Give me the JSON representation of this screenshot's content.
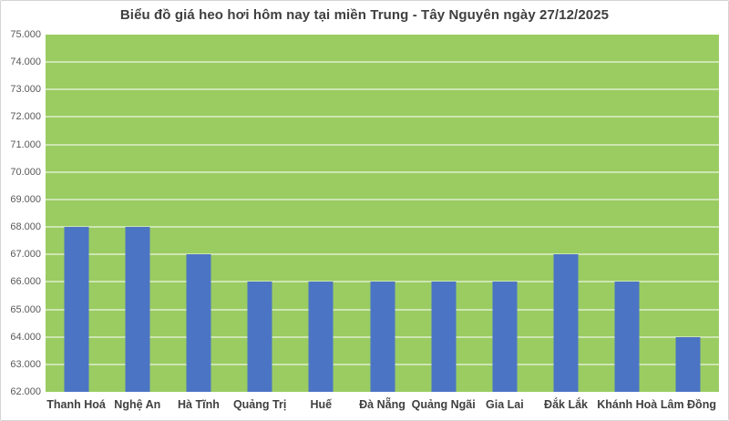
{
  "chart_data": {
    "type": "bar",
    "title": "Biểu đồ giá heo hơi hôm nay tại miền Trung - Tây Nguyên ngày 27/12/2025",
    "categories": [
      "Thanh Hoá",
      "Nghệ An",
      "Hà Tĩnh",
      "Quảng Trị",
      "Huế",
      "Đà Nẵng",
      "Quảng Ngãi",
      "Gia Lai",
      "Đắk Lắk",
      "Khánh Hoà",
      "Lâm Đồng"
    ],
    "values": [
      68000,
      68000,
      67000,
      66000,
      66000,
      66000,
      66000,
      66000,
      67000,
      66000,
      64000
    ],
    "xlabel": "",
    "ylabel": "",
    "ylim": [
      62000,
      75000
    ],
    "ytick_step": 1000,
    "ytick_labels": [
      "75.000",
      "74.000",
      "73.000",
      "72.000",
      "71.000",
      "70.000",
      "69.000",
      "68.000",
      "67.000",
      "66.000",
      "65.000",
      "64.000",
      "63.000",
      "62.000"
    ],
    "grid": "horizontal-major",
    "legend": "none",
    "colors": {
      "bar": "#4C74C4",
      "plot_background": "#9ACC62",
      "gridline": "rgba(255,255,255,0.5)",
      "title_text": "#3f3f3f",
      "y_tick_text": "#595959",
      "x_tick_text": "#3f3f3f",
      "page_background": "#ffffff",
      "frame_border": "#d4d4d4"
    }
  }
}
